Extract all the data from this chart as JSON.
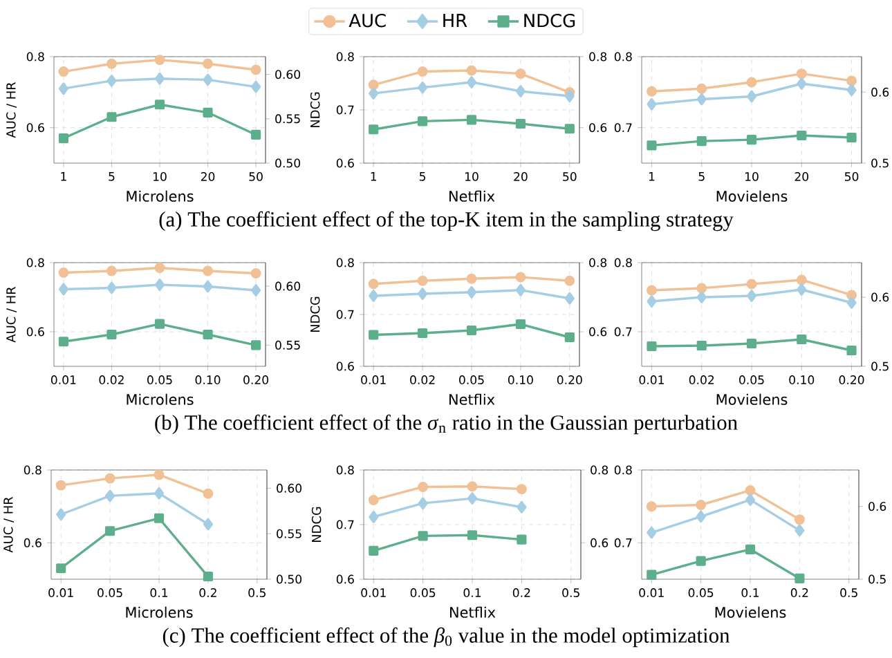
{
  "chart_data": [
    {
      "type": "line",
      "xlabel": "Microlens",
      "ylabel": "AUC / HR",
      "y2label": "NDCG",
      "categories": [
        "1",
        "5",
        "10",
        "20",
        "50"
      ],
      "ylim": [
        0.5,
        0.8
      ],
      "yticks": [
        0.6,
        0.8
      ],
      "y2lim": [
        0.5,
        0.62
      ],
      "y2ticks": [
        {
          "value": 0.5,
          "label": "0.50"
        },
        {
          "value": 0.55,
          "label": "0.55"
        },
        {
          "value": 0.6,
          "label": "0.60"
        }
      ],
      "grid": true,
      "legend": "top",
      "annotations": [
        "(a) The coefficient effect of the top-K item in the sampling strategy"
      ],
      "series": [
        {
          "name": "AUC",
          "color": "#f2c095",
          "marker": "circle",
          "values": [
            0.758,
            0.78,
            0.791,
            0.78,
            0.763
          ]
        },
        {
          "name": "HR",
          "color": "#a5cde4",
          "marker": "diamond",
          "values": [
            0.71,
            0.732,
            0.738,
            0.735,
            0.715
          ]
        },
        {
          "name": "NDCG",
          "color": "#5daf8b",
          "marker": "square",
          "axis": "y2",
          "values": [
            0.528,
            0.552,
            0.566,
            0.557,
            0.532
          ]
        }
      ]
    },
    {
      "type": "line",
      "xlabel": "Netflix",
      "categories": [
        "1",
        "5",
        "10",
        "20",
        "50"
      ],
      "ylim": [
        0.6,
        0.8
      ],
      "yticks": [
        0.6,
        0.7,
        0.8
      ],
      "y2lim": [
        0.5,
        0.8
      ],
      "y2ticks": [
        0.6,
        0.8
      ],
      "grid": true,
      "series": [
        {
          "color": "#f2c095",
          "marker": "circle",
          "values": [
            0.747,
            0.772,
            0.774,
            0.768,
            0.733
          ]
        },
        {
          "color": "#a5cde4",
          "marker": "diamond",
          "values": [
            0.731,
            0.742,
            0.752,
            0.735,
            0.726
          ]
        },
        {
          "color": "#5daf8b",
          "marker": "square",
          "axis": "y2",
          "values": [
            0.595,
            0.618,
            0.622,
            0.611,
            0.597
          ]
        }
      ]
    },
    {
      "type": "line",
      "xlabel": "Movielens",
      "categories": [
        "1",
        "5",
        "10",
        "20",
        "50"
      ],
      "ylim": [
        0.65,
        0.8
      ],
      "yticks": [
        0.7,
        0.8
      ],
      "y2lim": [
        0.5,
        0.65
      ],
      "y2ticks": [
        0.5,
        0.6
      ],
      "grid": true,
      "series": [
        {
          "color": "#f2c095",
          "marker": "circle",
          "values": [
            0.751,
            0.755,
            0.764,
            0.776,
            0.766
          ]
        },
        {
          "color": "#a5cde4",
          "marker": "diamond",
          "values": [
            0.733,
            0.74,
            0.744,
            0.762,
            0.753
          ]
        },
        {
          "color": "#5daf8b",
          "marker": "square",
          "axis": "y2",
          "values": [
            0.525,
            0.531,
            0.533,
            0.539,
            0.536
          ]
        }
      ]
    },
    {
      "type": "line",
      "xlabel": "Microlens",
      "ylabel": "AUC / HR",
      "y2label": "NDCG",
      "categories": [
        "0.01",
        "0.02",
        "0.05",
        "0.10",
        "0.20"
      ],
      "ylim": [
        0.5,
        0.8
      ],
      "yticks": [
        0.6,
        0.8
      ],
      "y2lim": [
        0.532,
        0.62
      ],
      "y2ticks": [
        {
          "value": 0.55,
          "label": "0.55"
        },
        {
          "value": 0.6,
          "label": "0.60"
        }
      ],
      "grid": true,
      "annotations": [
        "(b) The coefficient effect of the *σ*$_{n}$ ratio in the Gaussian perturbation"
      ],
      "series": [
        {
          "color": "#f2c095",
          "marker": "circle",
          "values": [
            0.771,
            0.776,
            0.785,
            0.776,
            0.769
          ]
        },
        {
          "color": "#a5cde4",
          "marker": "diamond",
          "values": [
            0.723,
            0.727,
            0.736,
            0.731,
            0.72
          ]
        },
        {
          "color": "#5daf8b",
          "marker": "square",
          "axis": "y2",
          "values": [
            0.553,
            0.559,
            0.568,
            0.559,
            0.55
          ]
        }
      ]
    },
    {
      "type": "line",
      "xlabel": "Netflix",
      "categories": [
        "0.01",
        "0.02",
        "0.05",
        "0.10",
        "0.20"
      ],
      "ylim": [
        0.6,
        0.8
      ],
      "yticks": [
        0.6,
        0.7,
        0.8
      ],
      "y2lim": [
        0.5,
        0.8
      ],
      "y2ticks": [
        0.6,
        0.8
      ],
      "grid": true,
      "series": [
        {
          "color": "#f2c095",
          "marker": "circle",
          "values": [
            0.759,
            0.765,
            0.769,
            0.772,
            0.765
          ]
        },
        {
          "color": "#a5cde4",
          "marker": "diamond",
          "values": [
            0.736,
            0.74,
            0.743,
            0.747,
            0.731
          ]
        },
        {
          "color": "#5daf8b",
          "marker": "square",
          "axis": "y2",
          "values": [
            0.591,
            0.596,
            0.604,
            0.622,
            0.584
          ]
        }
      ]
    },
    {
      "type": "line",
      "xlabel": "Movielens",
      "categories": [
        "0.01",
        "0.02",
        "0.05",
        "0.10",
        "0.20"
      ],
      "ylim": [
        0.65,
        0.8
      ],
      "yticks": [
        0.7,
        0.8
      ],
      "y2lim": [
        0.5,
        0.65
      ],
      "y2ticks": [
        0.5,
        0.6
      ],
      "grid": true,
      "series": [
        {
          "color": "#f2c095",
          "marker": "circle",
          "values": [
            0.76,
            0.763,
            0.769,
            0.775,
            0.753
          ]
        },
        {
          "color": "#a5cde4",
          "marker": "diamond",
          "values": [
            0.744,
            0.75,
            0.752,
            0.761,
            0.742
          ]
        },
        {
          "color": "#5daf8b",
          "marker": "square",
          "axis": "y2",
          "values": [
            0.529,
            0.53,
            0.533,
            0.539,
            0.523
          ]
        }
      ]
    },
    {
      "type": "line",
      "xlabel": "Microlens",
      "ylabel": "AUC / HR",
      "y2label": "NDCG",
      "categories": [
        "0.01",
        "0.05",
        "0.1",
        "0.2",
        "0.5"
      ],
      "ylim": [
        0.5,
        0.8
      ],
      "yticks": [
        0.6,
        0.8
      ],
      "y2lim": [
        0.5,
        0.62
      ],
      "y2ticks": [
        {
          "value": 0.5,
          "label": "0.50"
        },
        {
          "value": 0.55,
          "label": "0.55"
        },
        {
          "value": 0.6,
          "label": "0.60"
        }
      ],
      "grid": true,
      "annotations": [
        "(c) The coefficient effect of the *β*$_{0}$ value in the model optimization"
      ],
      "series": [
        {
          "color": "#f2c095",
          "marker": "circle",
          "values": [
            0.758,
            0.777,
            0.787,
            0.735,
            null
          ]
        },
        {
          "color": "#a5cde4",
          "marker": "diamond",
          "values": [
            0.678,
            0.729,
            0.736,
            0.651,
            null
          ]
        },
        {
          "color": "#5daf8b",
          "marker": "square",
          "axis": "y2",
          "values": [
            0.512,
            0.553,
            0.567,
            0.503,
            null
          ]
        }
      ]
    },
    {
      "type": "line",
      "xlabel": "Netflix",
      "categories": [
        "0.01",
        "0.05",
        "0.1",
        "0.2",
        "0.5"
      ],
      "ylim": [
        0.6,
        0.8
      ],
      "yticks": [
        0.6,
        0.7,
        0.8
      ],
      "y2lim": [
        0.5,
        0.8
      ],
      "y2ticks": [
        0.6,
        0.8
      ],
      "grid": true,
      "series": [
        {
          "color": "#f2c095",
          "marker": "circle",
          "values": [
            0.745,
            0.769,
            0.77,
            0.765,
            null
          ]
        },
        {
          "color": "#a5cde4",
          "marker": "diamond",
          "values": [
            0.714,
            0.739,
            0.748,
            0.732,
            null
          ]
        },
        {
          "color": "#5daf8b",
          "marker": "square",
          "axis": "y2",
          "values": [
            0.578,
            0.619,
            0.621,
            0.609,
            null
          ]
        }
      ]
    },
    {
      "type": "line",
      "xlabel": "Movielens",
      "categories": [
        "0.01",
        "0.05",
        "0.1",
        "0.2",
        "0.5"
      ],
      "ylim": [
        0.65,
        0.8
      ],
      "yticks": [
        0.7,
        0.8
      ],
      "y2lim": [
        0.5,
        0.65
      ],
      "y2ticks": [
        0.5,
        0.6
      ],
      "grid": true,
      "series": [
        {
          "color": "#f2c095",
          "marker": "circle",
          "values": [
            0.75,
            0.752,
            0.772,
            0.732,
            null
          ]
        },
        {
          "color": "#a5cde4",
          "marker": "diamond",
          "values": [
            0.714,
            0.736,
            0.759,
            0.717,
            null
          ]
        },
        {
          "color": "#5daf8b",
          "marker": "square",
          "axis": "y2",
          "values": [
            0.506,
            0.525,
            0.541,
            0.501,
            null
          ]
        }
      ]
    }
  ]
}
